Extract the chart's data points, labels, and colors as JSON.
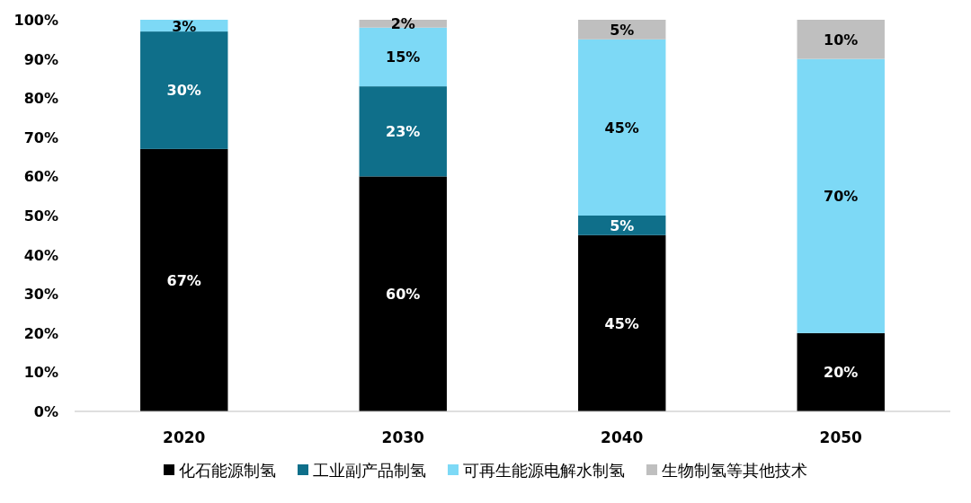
{
  "chart_data": {
    "type": "bar",
    "stacked": true,
    "categories": [
      "2020",
      "2030",
      "2040",
      "2050"
    ],
    "series": [
      {
        "name": "化石能源制氢",
        "color": "#000000",
        "values": [
          67,
          60,
          45,
          20
        ],
        "value_labels": [
          "67%",
          "60%",
          "45%",
          "20%"
        ]
      },
      {
        "name": "工业副产品制氢",
        "color": "#0f6f8a",
        "values": [
          30,
          23,
          5,
          0
        ],
        "value_labels": [
          "30%",
          "23%",
          "5%",
          null
        ]
      },
      {
        "name": "可再生能源电解水制氢",
        "color": "#7dd9f6",
        "values": [
          3,
          15,
          45,
          70
        ],
        "value_labels": [
          "3%",
          "15%",
          "45%",
          "70%"
        ]
      },
      {
        "name": "生物制氢等其他技术",
        "color": "#bfbfbf",
        "values": [
          0,
          2,
          5,
          10
        ],
        "value_labels": [
          null,
          "2%",
          "5%",
          "10%"
        ]
      }
    ],
    "ylim": [
      0,
      100
    ],
    "yticks": [
      {
        "value": 0,
        "label": "0%"
      },
      {
        "value": 10,
        "label": "10%"
      },
      {
        "value": 20,
        "label": "20%"
      },
      {
        "value": 30,
        "label": "30%"
      },
      {
        "value": 40,
        "label": "40%"
      },
      {
        "value": 50,
        "label": "50%"
      },
      {
        "value": 60,
        "label": "60%"
      },
      {
        "value": 70,
        "label": "70%"
      },
      {
        "value": 80,
        "label": "80%"
      },
      {
        "value": 90,
        "label": "90%"
      },
      {
        "value": 100,
        "label": "100%"
      }
    ],
    "grid": false,
    "legend": "bottom"
  }
}
